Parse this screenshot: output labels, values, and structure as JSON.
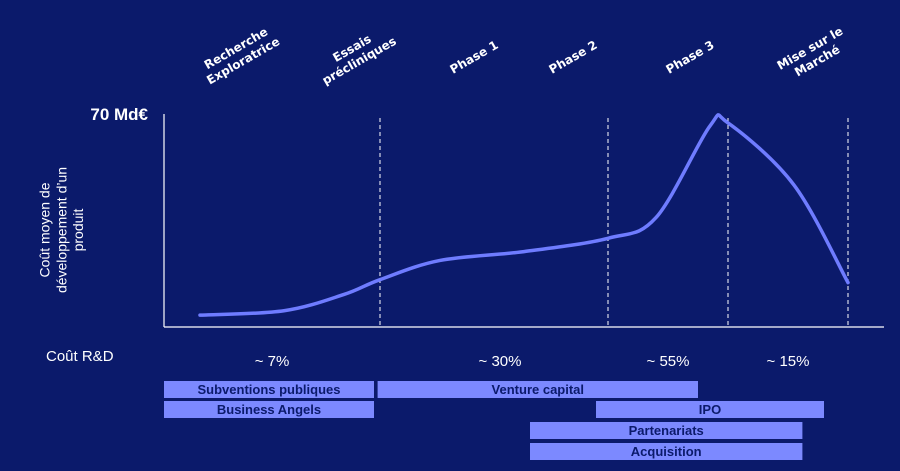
{
  "chart_data": {
    "type": "line",
    "title": "",
    "ylabel": "Coût moyen de développement d'un produit",
    "ymax_label": "70 Md€",
    "ylim": [
      0,
      70
    ],
    "stages": [
      "Recherche Exploratrice",
      "Essais précliniques",
      "Phase 1",
      "Phase 2",
      "Phase 3",
      "Mise sur le Marché"
    ],
    "stage_lines": [
      1.8,
      3.7,
      4.7,
      5.7
    ],
    "curve": {
      "x": [
        0.3,
        1.0,
        1.5,
        1.8,
        2.3,
        3.0,
        3.7,
        4.1,
        4.55,
        4.7,
        5.25,
        5.7
      ],
      "y": [
        4,
        5.5,
        11,
        16,
        22.5,
        25.5,
        30,
        37,
        68,
        69,
        48,
        15
      ]
    },
    "rd_row_label": "Coût R&D",
    "rd_costs": [
      {
        "x": 0.9,
        "label": "~ 7%"
      },
      {
        "x": 2.8,
        "label": "~ 30%"
      },
      {
        "x": 4.2,
        "label": "~ 55%"
      },
      {
        "x": 5.2,
        "label": "~ 15%"
      }
    ],
    "funding": [
      {
        "label": "Subventions publiques",
        "start": 0.0,
        "end": 1.75,
        "row": 0
      },
      {
        "label": "Venture capital",
        "start": 1.78,
        "end": 4.45,
        "row": 0
      },
      {
        "label": "Business Angels",
        "start": 0.0,
        "end": 1.75,
        "row": 1
      },
      {
        "label": "IPO",
        "start": 3.6,
        "end": 5.5,
        "row": 1
      },
      {
        "label": "Partenariats",
        "start": 3.05,
        "end": 5.32,
        "row": 2
      },
      {
        "label": "Acquisition",
        "start": 3.05,
        "end": 5.32,
        "row": 3
      }
    ],
    "colors": {
      "background": "#0b1a6b",
      "line": "#6f7cff",
      "bar": "#7c89ff",
      "bar_text": "#0b1a6b",
      "axis": "#ffffff"
    }
  }
}
